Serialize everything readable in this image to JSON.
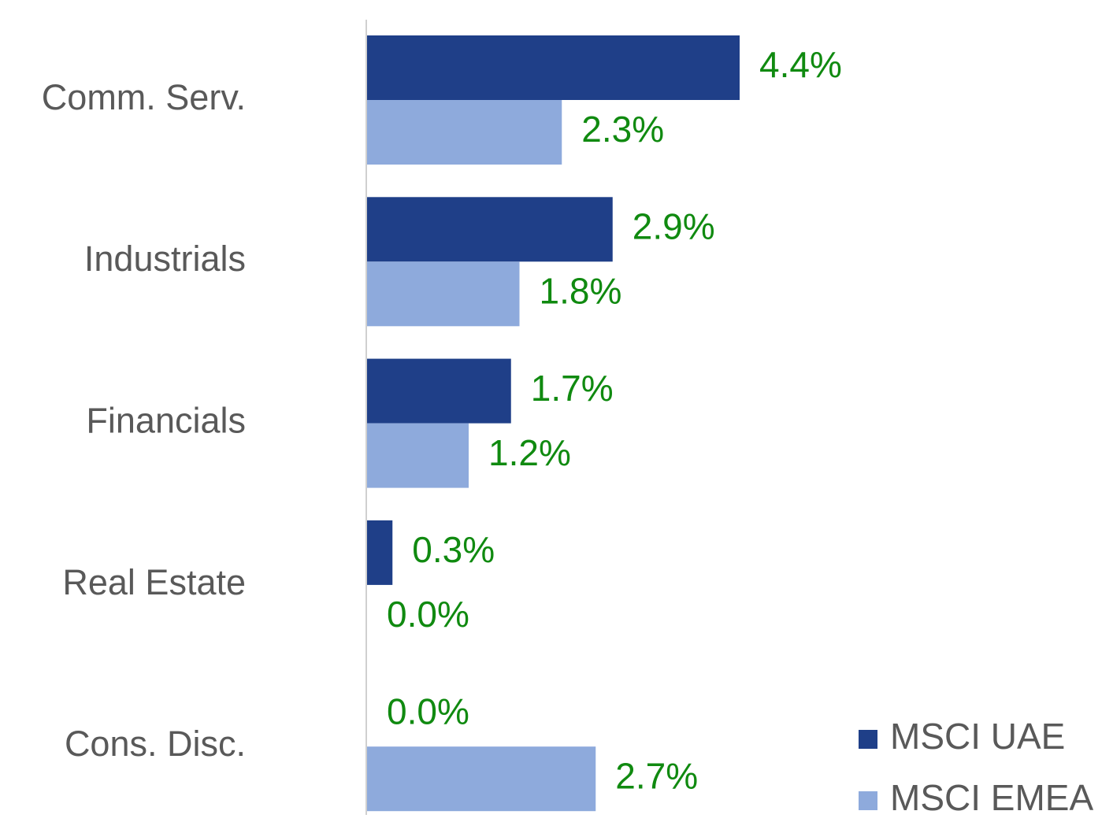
{
  "chart_data": {
    "type": "bar",
    "orientation": "horizontal",
    "categories": [
      "Comm. Serv.",
      "Industrials",
      "Financials",
      "Real Estate",
      "Cons. Disc."
    ],
    "series": [
      {
        "name": "MSCI UAE",
        "color": "#1f3f88",
        "values": [
          4.4,
          2.9,
          1.7,
          0.3,
          0.0
        ],
        "value_labels": [
          "4.4%",
          "2.9%",
          "1.7%",
          "0.3%",
          "0.0%"
        ]
      },
      {
        "name": "MSCI EMEA",
        "color": "#8eaadc",
        "values": [
          2.3,
          1.8,
          1.2,
          0.0,
          2.7
        ],
        "value_labels": [
          "2.3%",
          "1.8%",
          "1.2%",
          "0.0%",
          "2.7%"
        ]
      }
    ],
    "legend": "bottom-right"
  }
}
